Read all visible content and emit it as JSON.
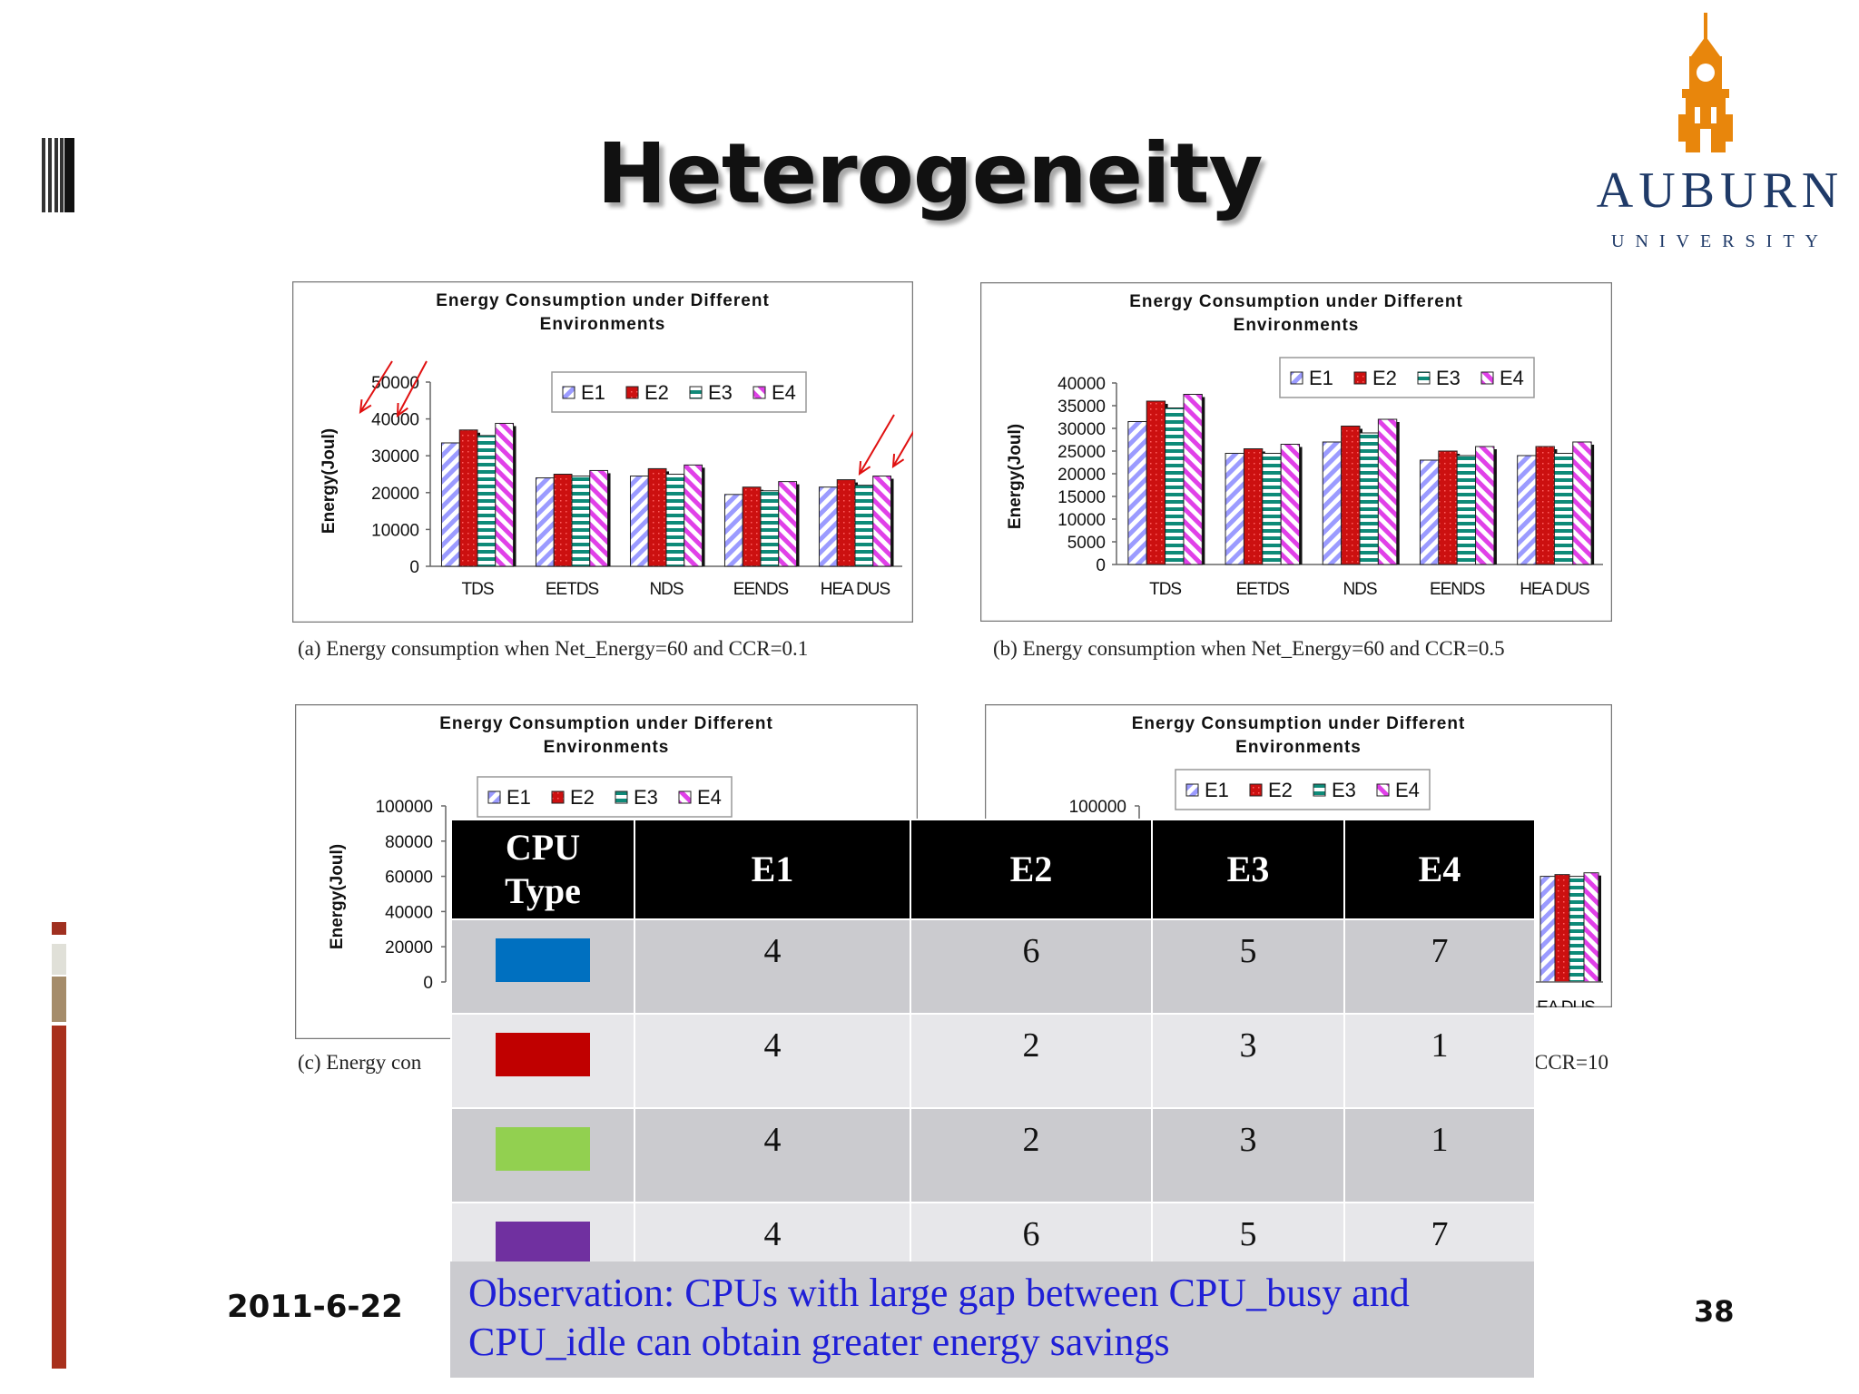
{
  "slide": {
    "title": "Heterogeneity",
    "date": "2011-6-22",
    "page_number": "38",
    "logo": {
      "name": "AUBURN",
      "subtitle": "UNIVERSITY"
    }
  },
  "colors": {
    "e1": "#9b9bff",
    "e2": "#cc1010",
    "e3": "#0e8a78",
    "e4": "#e040e8",
    "logo_orange": "#e8860c",
    "logo_navy": "#1f3a68"
  },
  "chart_data": [
    {
      "type": "bar",
      "title": "Energy Consumption under Different Environments",
      "title_lines": [
        "Energy Consumption under Different",
        "Environments"
      ],
      "ylabel": "Energy(Joul)",
      "xlabel": "",
      "categories": [
        "TDS",
        "EETDS",
        "NDS",
        "EENDS",
        "HEADUS"
      ],
      "category_labels": [
        "TDS",
        "EETDS",
        "NDS",
        "EENDS",
        "HEA DUS"
      ],
      "ylim": [
        0,
        50000
      ],
      "yticks": [
        "50000",
        "40000",
        "30000",
        "20000",
        "10000",
        "0"
      ],
      "legend": [
        "E1",
        "E2",
        "E3",
        "E4"
      ],
      "series": [
        {
          "name": "E1",
          "values": [
            33500,
            24000,
            24500,
            19500,
            21500
          ]
        },
        {
          "name": "E2",
          "values": [
            37000,
            25000,
            26500,
            21500,
            23500
          ]
        },
        {
          "name": "E3",
          "values": [
            35500,
            24500,
            25000,
            20500,
            22000
          ]
        },
        {
          "name": "E4",
          "values": [
            38800,
            26000,
            27500,
            23000,
            24500
          ]
        }
      ],
      "caption": "(a) Energy consumption when Net_Energy=60 and CCR=0.1"
    },
    {
      "type": "bar",
      "title": "Energy Consumption under Different Environments",
      "title_lines": [
        "Energy Consumption under Different",
        "Environments"
      ],
      "ylabel": "Energy(Joul)",
      "xlabel": "",
      "categories": [
        "TDS",
        "EETDS",
        "NDS",
        "EENDS",
        "HEADUS"
      ],
      "category_labels": [
        "TDS",
        "EETDS",
        "NDS",
        "EENDS",
        "HEA DUS"
      ],
      "ylim": [
        0,
        40000
      ],
      "yticks": [
        "40000",
        "35000",
        "30000",
        "25000",
        "20000",
        "15000",
        "10000",
        "5000",
        "0"
      ],
      "legend": [
        "E1",
        "E2",
        "E3",
        "E4"
      ],
      "series": [
        {
          "name": "E1",
          "values": [
            31500,
            24500,
            27000,
            23000,
            24000
          ]
        },
        {
          "name": "E2",
          "values": [
            36000,
            25500,
            30500,
            25000,
            26000
          ]
        },
        {
          "name": "E3",
          "values": [
            34500,
            24500,
            29000,
            24000,
            24500
          ]
        },
        {
          "name": "E4",
          "values": [
            37500,
            26500,
            32000,
            26000,
            27000
          ]
        }
      ],
      "caption": "(b) Energy consumption when Net_Energy=60 and CCR=0.5"
    },
    {
      "type": "bar",
      "title": "Energy Consumption under Different Environments",
      "title_lines": [
        "Energy Consumption under Different",
        "Environments"
      ],
      "ylabel": "Energy(Joul)",
      "xlabel": "",
      "categories": [],
      "ylim": [
        0,
        100000
      ],
      "yticks": [
        "100000",
        "80000",
        "60000",
        "40000",
        "20000",
        "0"
      ],
      "legend": [
        "E1",
        "E2",
        "E3",
        "E4"
      ],
      "series": [],
      "caption": "(c) Energy con"
    },
    {
      "type": "bar",
      "title": "Energy Consumption under Different Environments",
      "title_lines": [
        "Energy Consumption under Different",
        "Environments"
      ],
      "ylabel": "",
      "xlabel": "",
      "categories": [
        "HEADUS"
      ],
      "category_labels": [
        "EA DUS"
      ],
      "ylim": [
        0,
        100000
      ],
      "yticks": [
        "100000"
      ],
      "legend": [
        "E1",
        "E2",
        "E3",
        "E4"
      ],
      "series": [
        {
          "name": "E1",
          "values": [
            60000
          ]
        },
        {
          "name": "E2",
          "values": [
            61000
          ]
        },
        {
          "name": "E3",
          "values": [
            60000
          ]
        },
        {
          "name": "E4",
          "values": [
            62000
          ]
        }
      ],
      "caption": "CCR=10"
    }
  ],
  "table": {
    "headers": [
      "CPU\nType",
      "E1",
      "E2",
      "E3",
      "E4"
    ],
    "rows": [
      {
        "color": "#0070c0",
        "values": [
          "4",
          "6",
          "5",
          "7"
        ]
      },
      {
        "color": "#c00000",
        "values": [
          "4",
          "2",
          "3",
          "1"
        ]
      },
      {
        "color": "#92d050",
        "values": [
          "4",
          "2",
          "3",
          "1"
        ]
      },
      {
        "color": "#7030a0",
        "values": [
          "4",
          "6",
          "5",
          "7"
        ]
      }
    ]
  },
  "observation": "Observation: CPUs with large gap between CPU_busy and CPU_idle can obtain greater energy savings"
}
